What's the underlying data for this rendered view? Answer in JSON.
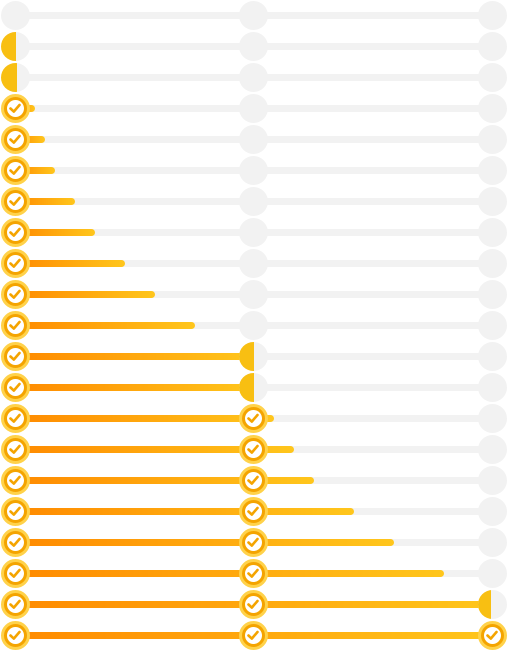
{
  "theme": {
    "track": "#f2f2f2",
    "gradient_start": "#ff8a00",
    "gradient_end": "#ffc61c",
    "node_done": "#f4a400",
    "node_ring": "#ffd24a",
    "node_partial": "#f8bf12"
  },
  "rows": [
    {
      "progress": 0.0
    },
    {
      "progress": 0.002
    },
    {
      "progress": 0.004
    },
    {
      "progress": 0.042
    },
    {
      "progress": 0.063
    },
    {
      "progress": 0.084
    },
    {
      "progress": 0.126
    },
    {
      "progress": 0.168
    },
    {
      "progress": 0.231
    },
    {
      "progress": 0.294
    },
    {
      "progress": 0.377
    },
    {
      "progress": 0.5
    },
    {
      "progress": 0.502
    },
    {
      "progress": 0.542
    },
    {
      "progress": 0.584
    },
    {
      "progress": 0.626
    },
    {
      "progress": 0.71
    },
    {
      "progress": 0.794
    },
    {
      "progress": 0.899
    },
    {
      "progress": 0.998
    },
    {
      "progress": 1.0
    }
  ],
  "steps": [
    {
      "icon": "check-icon"
    },
    {
      "icon": "check-icon"
    },
    {
      "icon": "check-icon"
    }
  ]
}
